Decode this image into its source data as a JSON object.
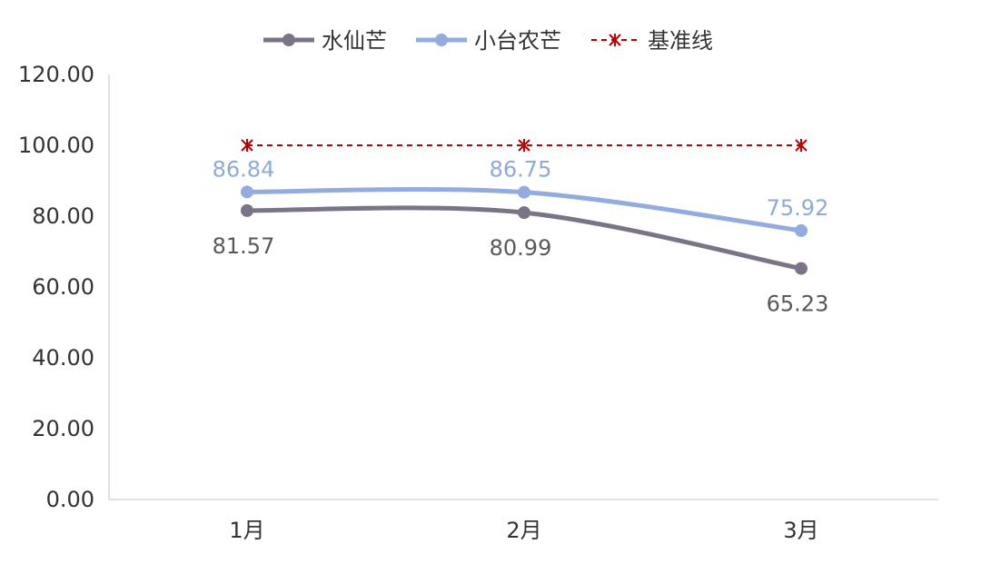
{
  "chart_data": {
    "type": "line",
    "title": "",
    "xlabel": "",
    "ylabel": "",
    "categories": [
      "1月",
      "2月",
      "3月"
    ],
    "ylim": [
      0,
      120
    ],
    "yticks": [
      "0.00",
      "20.00",
      "40.00",
      "60.00",
      "80.00",
      "100.00",
      "120.00"
    ],
    "grid": false,
    "legend_position": "top",
    "series": [
      {
        "name": "水仙芒",
        "values": [
          81.57,
          80.99,
          65.23
        ],
        "labels": [
          "81.57",
          "80.99",
          "65.23"
        ],
        "color": "#7b7487",
        "label_color": "#595959",
        "style": "smooth",
        "marker": "circle",
        "label_position": "below"
      },
      {
        "name": "小台农芒",
        "values": [
          86.84,
          86.75,
          75.92
        ],
        "labels": [
          "86.84",
          "86.75",
          "75.92"
        ],
        "color": "#93abdf",
        "label_color": "#8eaad8",
        "style": "smooth",
        "marker": "circle",
        "label_position": "above"
      },
      {
        "name": "基准线",
        "values": [
          100,
          100,
          100
        ],
        "color": "#c00000",
        "style": "dashed",
        "marker": "asterisk"
      }
    ]
  }
}
